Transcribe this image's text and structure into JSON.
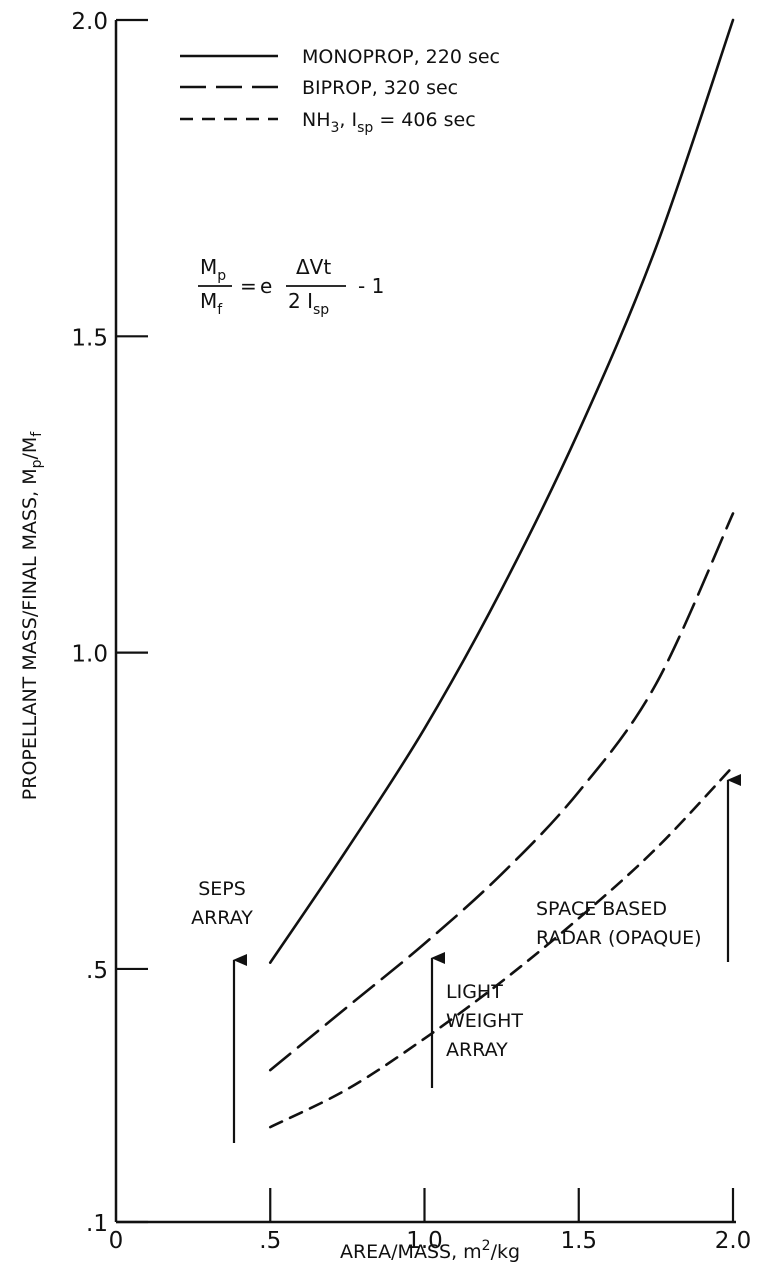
{
  "chart_data": {
    "type": "line",
    "xlabel_main": "AREA/MASS, m",
    "xlabel_sup": "2",
    "xlabel_tail": "/kg",
    "ylabel_main": "PROPELLANT MASS/FINAL MASS, M",
    "ylabel_sub1": "p",
    "ylabel_mid": "/M",
    "ylabel_sub2": "f",
    "xlim": [
      0,
      2.0
    ],
    "ylim": [
      0.1,
      2.0
    ],
    "x_ticks": [
      {
        "value": 0,
        "label": "0"
      },
      {
        "value": 0.5,
        "label": ".5"
      },
      {
        "value": 1.0,
        "label": "1.0"
      },
      {
        "value": 1.5,
        "label": "1.5"
      },
      {
        "value": 2.0,
        "label": "2.0"
      }
    ],
    "y_ticks": [
      {
        "value": 0.1,
        "label": ".1"
      },
      {
        "value": 0.5,
        "label": ".5"
      },
      {
        "value": 1.0,
        "label": "1.0"
      },
      {
        "value": 1.5,
        "label": "1.5"
      },
      {
        "value": 2.0,
        "label": "2.0"
      }
    ],
    "series": [
      {
        "name": "MONOPROP, 220 sec",
        "dash": "solid",
        "x": [
          0.5,
          0.75,
          1.0,
          1.25,
          1.5,
          1.75,
          2.0
        ],
        "y": [
          0.51,
          0.69,
          0.88,
          1.1,
          1.35,
          1.64,
          2.0
        ]
      },
      {
        "name": "BIPROP, 320 sec",
        "dash": "longdash",
        "x": [
          0.5,
          0.75,
          1.0,
          1.25,
          1.5,
          1.75,
          2.0
        ],
        "y": [
          0.34,
          0.44,
          0.54,
          0.65,
          0.78,
          0.95,
          1.22
        ]
      },
      {
        "name": "NH3, Isp = 406 sec",
        "dash": "shortdash",
        "x": [
          0.5,
          0.75,
          1.0,
          1.25,
          1.5,
          1.75,
          2.0
        ],
        "y": [
          0.25,
          0.31,
          0.39,
          0.48,
          0.58,
          0.69,
          0.82
        ]
      }
    ]
  },
  "legend": {
    "entries": [
      {
        "pre": "MONOPROP, 220 sec",
        "sub": "",
        "mid": "",
        "sub2": "",
        "post": ""
      },
      {
        "pre": "BIPROP, 320 sec",
        "sub": "",
        "mid": "",
        "sub2": "",
        "post": ""
      },
      {
        "pre": "NH",
        "sub": "3",
        "mid": ", I",
        "sub2": "sp",
        "post": " = 406 sec"
      }
    ]
  },
  "equation": {
    "lhs_num": "M",
    "lhs_num_sub": "p",
    "lhs_den": "M",
    "lhs_den_sub": "f",
    "equals": "=",
    "base": "e",
    "exp_num": "ΔVt",
    "exp_den": "2 I",
    "exp_den_sub": "sp",
    "tail": "- 1"
  },
  "annotations": [
    {
      "key": "seps",
      "lines": [
        "SEPS",
        "ARRAY"
      ]
    },
    {
      "key": "light",
      "lines": [
        "LIGHT",
        "WEIGHT",
        "ARRAY"
      ]
    },
    {
      "key": "space",
      "lines": [
        "SPACE BASED",
        "RADAR (OPAQUE)"
      ]
    }
  ]
}
